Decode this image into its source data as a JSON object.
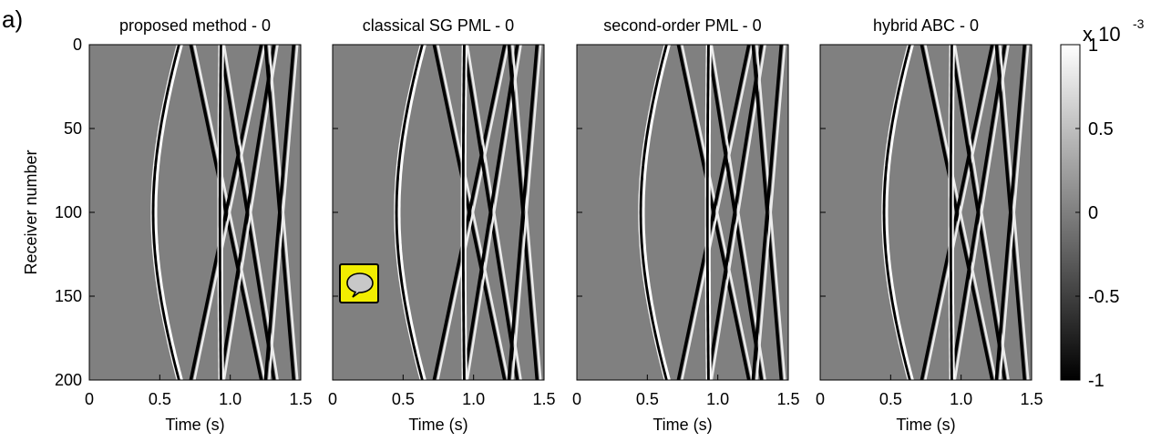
{
  "figure": {
    "panel_label": "a)",
    "colorbar_exponent_base": "x 10",
    "colorbar_exponent_power": "-3",
    "comment_icon": "speech-bubble-icon"
  },
  "chart_data": [
    {
      "type": "heatmap",
      "title": "proposed method - 0",
      "xlabel": "Time (s)",
      "ylabel": "Receiver number",
      "xlim": [
        0,
        1.5
      ],
      "ylim": [
        0,
        200
      ],
      "x_ticks": [
        "0",
        "0.5",
        "1.0",
        "1.5"
      ],
      "y_ticks": [
        "0",
        "50",
        "100",
        "150",
        "200"
      ],
      "colormap": "gray",
      "clim": [
        -1,
        1
      ],
      "color_scale_factor": "x 10^-3",
      "event_apex_times_s": [
        0.46,
        0.72,
        0.93,
        1.22,
        1.31
      ]
    },
    {
      "type": "heatmap",
      "title": "classical SG PML - 0",
      "xlabel": "Time (s)",
      "ylabel": "",
      "xlim": [
        0,
        1.5
      ],
      "ylim": [
        0,
        200
      ],
      "x_ticks": [
        "0",
        "0.5",
        "1.0",
        "1.5"
      ],
      "y_ticks": [],
      "colormap": "gray",
      "clim": [
        -1,
        1
      ],
      "color_scale_factor": "x 10^-3",
      "event_apex_times_s": [
        0.46,
        0.72,
        0.93,
        1.22,
        1.31
      ]
    },
    {
      "type": "heatmap",
      "title": "second-order PML - 0",
      "xlabel": "Time (s)",
      "ylabel": "",
      "xlim": [
        0,
        1.5
      ],
      "ylim": [
        0,
        200
      ],
      "x_ticks": [
        "0",
        "0.5",
        "1.0",
        "1.5"
      ],
      "y_ticks": [],
      "colormap": "gray",
      "clim": [
        -1,
        1
      ],
      "color_scale_factor": "x 10^-3",
      "event_apex_times_s": [
        0.46,
        0.72,
        0.93,
        1.22,
        1.31
      ]
    },
    {
      "type": "heatmap",
      "title": "hybrid ABC - 0",
      "xlabel": "Time (s)",
      "ylabel": "",
      "xlim": [
        0,
        1.5
      ],
      "ylim": [
        0,
        200
      ],
      "x_ticks": [
        "0",
        "0.5",
        "1.0",
        "1.5"
      ],
      "y_ticks": [],
      "colormap": "gray",
      "clim": [
        -1,
        1
      ],
      "color_scale_factor": "x 10^-3",
      "event_apex_times_s": [
        0.46,
        0.72,
        0.93,
        1.22,
        1.31
      ]
    }
  ],
  "colorbar": {
    "ticks": [
      "1",
      "0.5",
      "0",
      "-0.5",
      "-1"
    ],
    "tick_values": [
      1,
      0.5,
      0,
      -0.5,
      -1
    ],
    "background_color": "#808080"
  }
}
